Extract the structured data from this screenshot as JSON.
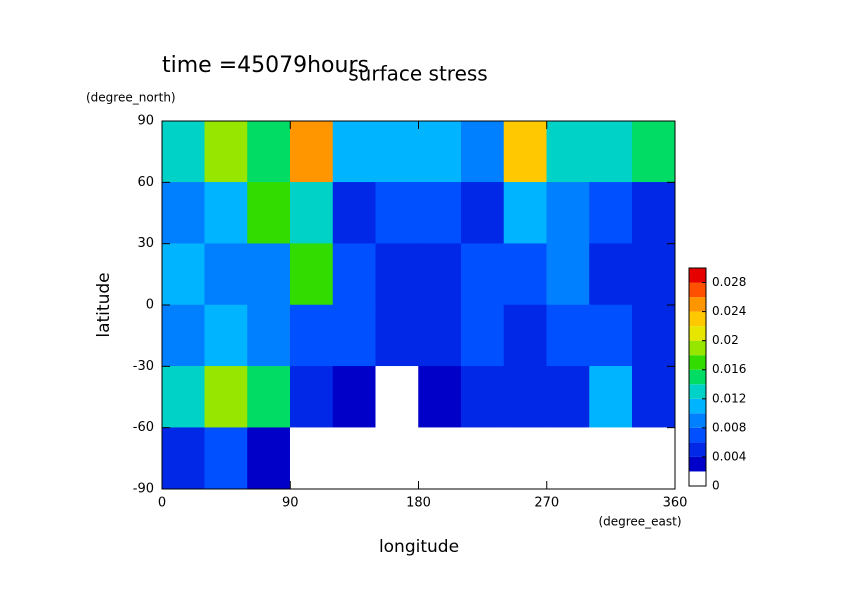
{
  "chart_data": {
    "type": "contour",
    "title": "surface stress",
    "subtitle": "time =45079hours",
    "x_label": "longitude",
    "x_unit": "(degree_east)",
    "y_label": "latitude",
    "y_unit": "(degree_north)",
    "xlim": [
      0,
      360
    ],
    "xticks": [
      0,
      90,
      180,
      270,
      360
    ],
    "ylim": [
      -90,
      90
    ],
    "yticks": [
      -90,
      -60,
      -30,
      0,
      30,
      60,
      90
    ],
    "x": [
      15,
      45,
      75,
      105,
      135,
      165,
      195,
      225,
      255,
      285,
      315,
      345
    ],
    "y": [
      75,
      45,
      15,
      -15,
      -45,
      -75
    ],
    "z": [
      [
        0.012,
        0.018,
        0.014,
        0.024,
        0.01,
        0.01,
        0.01,
        0.008,
        0.022,
        0.012,
        0.012,
        0.014
      ],
      [
        0.008,
        0.01,
        0.016,
        0.012,
        0.004,
        0.006,
        0.006,
        0.004,
        0.01,
        0.008,
        0.006,
        0.004
      ],
      [
        0.01,
        0.008,
        0.008,
        0.016,
        0.006,
        0.004,
        0.004,
        0.006,
        0.006,
        0.008,
        0.004,
        0.004
      ],
      [
        0.008,
        0.01,
        0.008,
        0.006,
        0.006,
        0.004,
        0.004,
        0.006,
        0.004,
        0.006,
        0.006,
        0.004
      ],
      [
        0.012,
        0.018,
        0.014,
        0.004,
        0.002,
        0.001,
        0.002,
        0.004,
        0.004,
        0.004,
        0.01,
        0.004
      ],
      [
        0.004,
        0.006,
        0.002,
        0.001,
        0.001,
        0.001,
        0.001,
        0.001,
        0.001,
        0.001,
        0.001,
        0.001
      ]
    ],
    "levels": [
      0,
      0.002,
      0.004,
      0.006,
      0.008,
      0.01,
      0.012,
      0.014,
      0.016,
      0.018,
      0.02,
      0.022,
      0.024,
      0.026,
      0.028,
      0.03
    ],
    "colors": [
      "#ffffff",
      "#0000c8",
      "#0028e6",
      "#0050ff",
      "#0080ff",
      "#00b4ff",
      "#00d2c8",
      "#00dc64",
      "#32dc00",
      "#96e600",
      "#e6e600",
      "#ffc800",
      "#ff9600",
      "#ff5000",
      "#e60000"
    ],
    "colorbar_ticks": [
      0,
      0.004,
      0.008,
      0.012,
      0.016,
      0.02,
      0.024,
      0.028
    ]
  }
}
